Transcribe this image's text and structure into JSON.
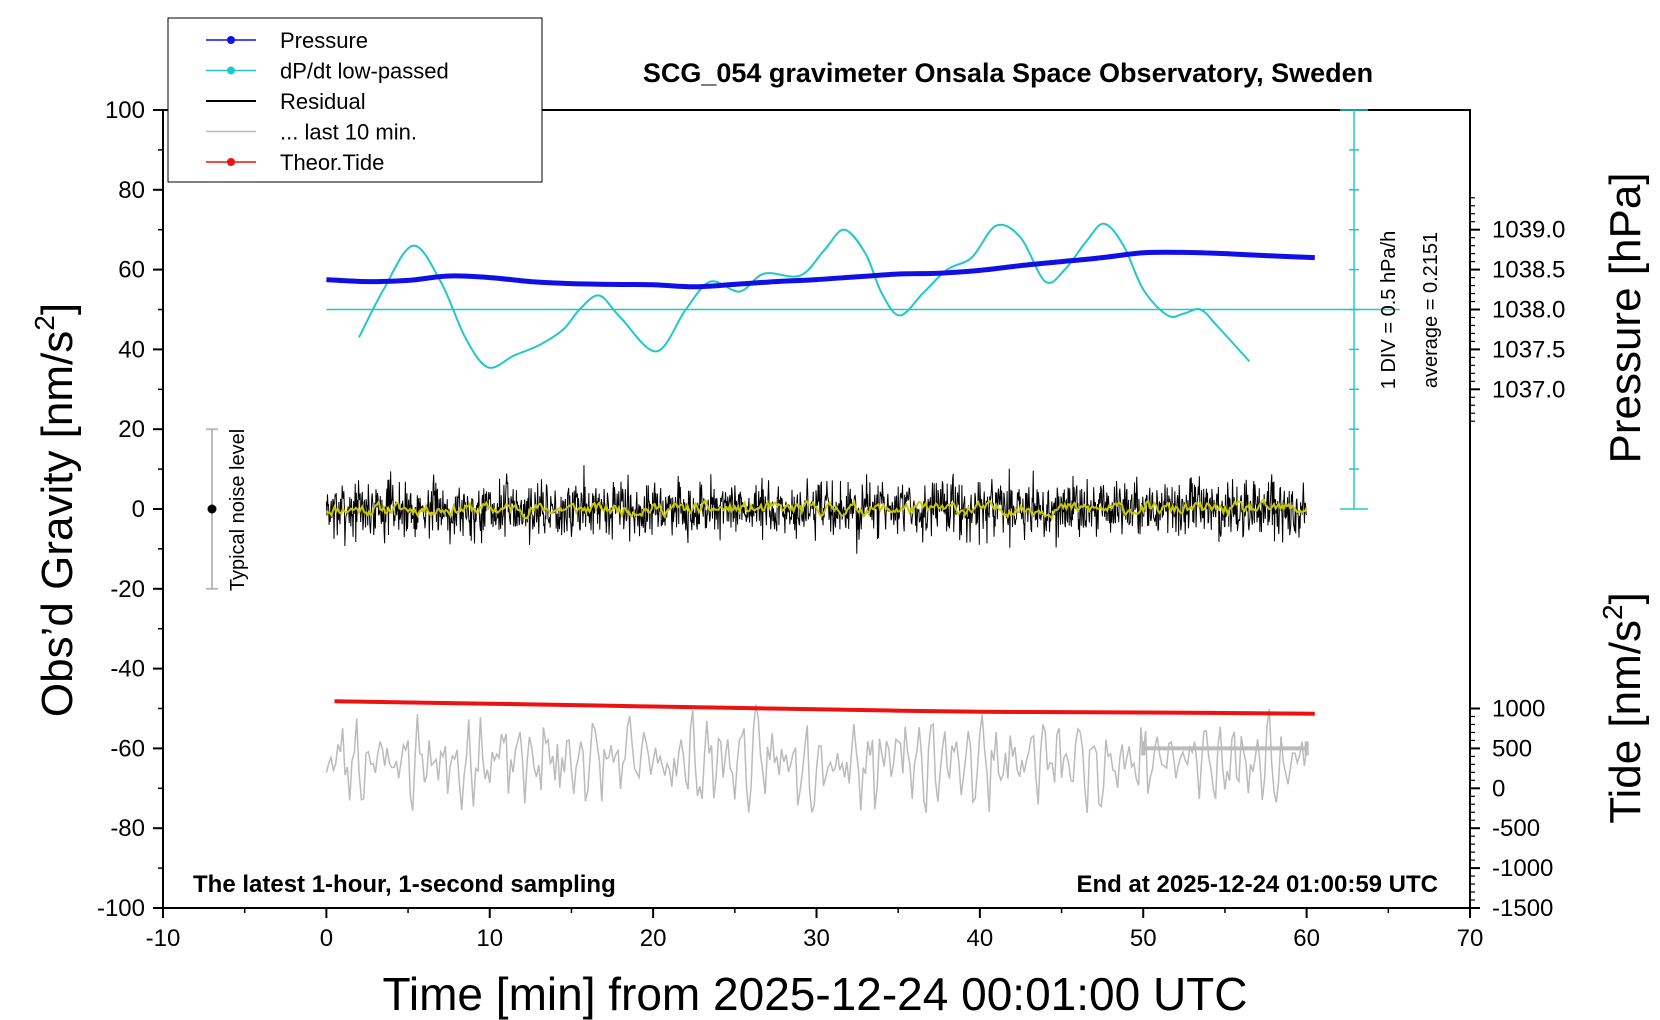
{
  "chart_data": {
    "type": "line",
    "title": "SCG_054 gravimeter Onsala Space Observatory, Sweden",
    "xlabel": "Time [min] from 2025-12-24 00:01:00 UTC",
    "ylabel_left_text": "Obs’d Gravity [nm/s",
    "ylabel_left_sup": "2",
    "ylabel_left_close": "]",
    "ylabel_right_top": "Pressure [hPa]",
    "ylabel_right_bottom_text": "Tide [nm/s",
    "ylabel_right_bottom_sup": "2",
    "ylabel_right_bottom_close": "]",
    "xlim": [
      -10,
      70
    ],
    "ylim_left": [
      -100,
      100
    ],
    "x_ticks": [
      -10,
      0,
      10,
      20,
      30,
      40,
      50,
      60,
      70
    ],
    "x_tick_labels": [
      "-10",
      "0",
      "10",
      "20",
      "30",
      "40",
      "50",
      "60",
      "70"
    ],
    "y_ticks_left": [
      -100,
      -80,
      -60,
      -40,
      -20,
      0,
      20,
      40,
      60,
      80,
      100
    ],
    "y_tick_labels_left": [
      "-100",
      "-80",
      "-60",
      "-40",
      "-20",
      "0",
      "20",
      "40",
      "60",
      "80",
      "100"
    ],
    "pressure_axis": {
      "ticks": [
        1037.0,
        1037.5,
        1038.0,
        1038.5,
        1039.0
      ],
      "tick_labels": [
        "1037.0",
        "1037.5",
        "1038.0",
        "1038.5",
        "1039.0"
      ],
      "ref_value": 1038.0,
      "ref_gravity": 50,
      "gravity_per_hpa": 20
    },
    "tide_axis": {
      "ticks": [
        -1500,
        -1000,
        -500,
        0,
        500,
        1000
      ],
      "tick_labels": [
        "-1500",
        "-1000",
        "-500",
        "0",
        "500",
        "1000"
      ],
      "ref_value": -1500,
      "ref_gravity": -100,
      "gravity_per_unit": 0.02
    },
    "dpdt_scale": {
      "label": "1 DIV = 0.5 hPa/h",
      "average_label": "average = 0.2151",
      "baseline_gravity": 50,
      "x_min": 62.9,
      "top_gravity": 100,
      "bottom_gravity": 0,
      "divisions": 10
    },
    "noise_bar": {
      "label": "Typical noise level",
      "x_min": -7,
      "low": -20,
      "high": 20,
      "center": 0
    },
    "ten_min_bar": {
      "x_start": 50,
      "x_end": 60,
      "tide_value": 500
    },
    "notes": {
      "left": "The latest 1-hour, 1-second sampling",
      "right": "End at 2025-12-24 01:00:59 UTC"
    },
    "legend": [
      {
        "label": "Pressure",
        "color": "#1010e6",
        "marker": true
      },
      {
        "label": "dP/dt low-passed",
        "color": "#22c8c8",
        "marker": true
      },
      {
        "label": "Residual",
        "color": "#000000",
        "marker": false
      },
      {
        "label": "... last 10 min.",
        "color": "#bbbbbb",
        "marker": false
      },
      {
        "label": "Theor.Tide",
        "color": "#ee1111",
        "marker": true
      }
    ],
    "series": [
      {
        "name": "Pressure",
        "color": "#1010e6",
        "axis": "gravity",
        "x": [
          0,
          2.5,
          5,
          7.5,
          10,
          12.5,
          15,
          17.5,
          20,
          22.5,
          25,
          27.5,
          30,
          32.5,
          35,
          37.5,
          40,
          42.5,
          45,
          47.5,
          50,
          52.5,
          55,
          57.5,
          60.5
        ],
        "y": [
          57.5,
          57.0,
          57.3,
          58.4,
          58.0,
          57.0,
          56.5,
          56.3,
          56.2,
          55.7,
          56.3,
          57.0,
          57.5,
          58.2,
          58.9,
          59.1,
          59.8,
          61.0,
          62.0,
          63.0,
          64.2,
          64.3,
          64.0,
          63.5,
          63.0
        ]
      },
      {
        "name": "dP/dt low-passed",
        "color": "#22c8c8",
        "axis": "gravity",
        "x": [
          2,
          3.5,
          5.3,
          7,
          8.5,
          9.9,
          11.5,
          13,
          14.5,
          15.5,
          16.7,
          18,
          20.2,
          22,
          23.5,
          25.3,
          26.8,
          29,
          30.5,
          31.7,
          33,
          34,
          35.1,
          36.5,
          38,
          39.5,
          41,
          42.5,
          44,
          45.2,
          46.5,
          47.6,
          48.8,
          50,
          51.5,
          52.5,
          53.5,
          54.5,
          56.5
        ],
        "y": [
          43,
          55,
          66,
          57,
          43,
          35.5,
          38.5,
          41,
          45,
          50,
          53.5,
          48,
          39.5,
          50,
          57,
          54.5,
          59,
          58.5,
          65,
          70,
          64,
          54,
          48.5,
          54,
          60,
          63,
          71,
          68,
          57,
          60,
          67,
          71.5,
          66,
          55,
          48.5,
          49,
          50,
          46,
          37
        ]
      },
      {
        "name": "Theor.Tide",
        "color": "#ee1111",
        "axis": "gravity",
        "x": [
          0.5,
          10,
          20,
          30,
          40,
          50,
          60.5
        ],
        "y": [
          -48.2,
          -48.8,
          -49.5,
          -50.2,
          -50.8,
          -51.0,
          -51.3
        ]
      },
      {
        "name": "Residual",
        "color": "#000000",
        "axis": "gravity",
        "generated": true,
        "x_range": [
          0,
          60
        ],
        "amplitude": 14,
        "seed": 7
      },
      {
        "name": "Residual smoothed",
        "color": "#c8c800",
        "axis": "gravity",
        "generated": true,
        "x_range": [
          0,
          60
        ],
        "amplitude": 3,
        "seed": 11
      },
      {
        "name": "... last 10 min.",
        "color": "#bbbbbb",
        "axis": "gravity",
        "generated": true,
        "x_range": [
          0,
          60
        ],
        "center": -63,
        "amplitude": 11,
        "seed": 23
      }
    ]
  }
}
